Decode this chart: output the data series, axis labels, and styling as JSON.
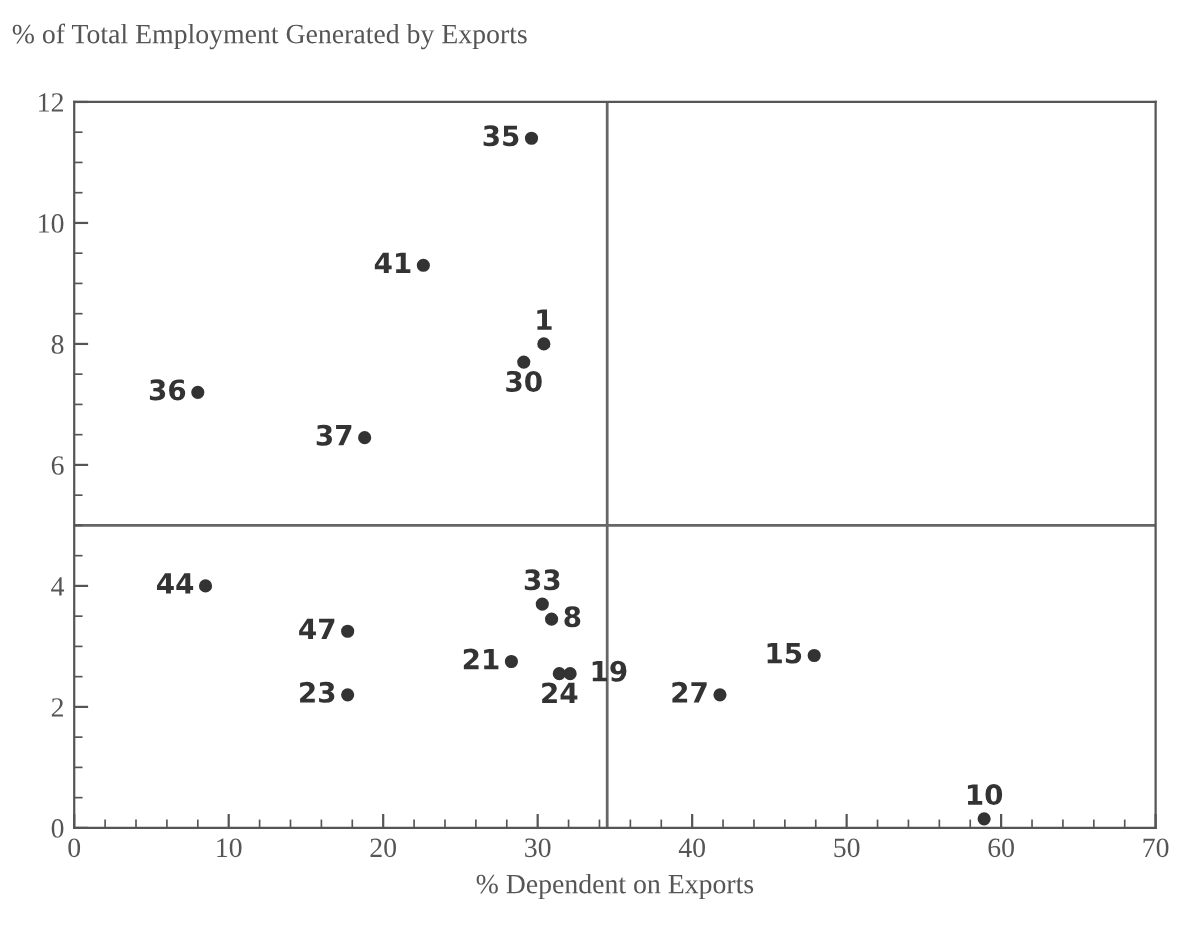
{
  "chart_data": {
    "type": "scatter",
    "ylabel": "% of Total Employment Generated by Exports",
    "xlabel": "% Dependent on Exports",
    "x": [
      29.6,
      22.6,
      30.4,
      29.1,
      8.0,
      18.8,
      8.5,
      17.7,
      17.7,
      28.3,
      30.3,
      30.9,
      32.1,
      31.4,
      47.9,
      41.8,
      58.9
    ],
    "values": [
      11.4,
      9.3,
      8.0,
      7.7,
      7.2,
      6.45,
      4.0,
      3.25,
      2.2,
      2.75,
      3.7,
      3.45,
      2.55,
      2.55,
      2.85,
      2.2,
      0.15
    ],
    "annotations": [
      {
        "text": "35",
        "x": 29.6,
        "y": 11.4
      },
      {
        "text": "41",
        "x": 22.6,
        "y": 9.3
      },
      {
        "text": "1",
        "x": 30.4,
        "y": 8.0
      },
      {
        "text": "30",
        "x": 29.1,
        "y": 7.7
      },
      {
        "text": "36",
        "x": 8.0,
        "y": 7.2
      },
      {
        "text": "37",
        "x": 18.8,
        "y": 6.45
      },
      {
        "text": "44",
        "x": 8.5,
        "y": 4.0
      },
      {
        "text": "47",
        "x": 17.7,
        "y": 3.25
      },
      {
        "text": "23",
        "x": 17.7,
        "y": 2.2
      },
      {
        "text": "21",
        "x": 28.3,
        "y": 2.75
      },
      {
        "text": "33",
        "x": 30.3,
        "y": 3.7
      },
      {
        "text": "8",
        "x": 30.9,
        "y": 3.45
      },
      {
        "text": "19",
        "x": 32.1,
        "y": 2.55
      },
      {
        "text": "24",
        "x": 31.4,
        "y": 2.55
      },
      {
        "text": "15",
        "x": 47.9,
        "y": 2.85
      },
      {
        "text": "27",
        "x": 41.8,
        "y": 2.2
      },
      {
        "text": "10",
        "x": 58.9,
        "y": 0.15
      }
    ],
    "color": "#333333",
    "marker": "circle",
    "xlim": [
      0,
      70
    ],
    "xticks": [
      0,
      10,
      20,
      30,
      40,
      50,
      60,
      70
    ],
    "ylim": [
      0,
      12
    ],
    "yticks": [
      0,
      2,
      4,
      6,
      8,
      10,
      12
    ],
    "ref_lines": [
      {
        "axis": "x",
        "value": 34.5,
        "color": "#666666"
      },
      {
        "axis": "y",
        "value": 5.0,
        "color": "#666666"
      }
    ],
    "grid": false,
    "legend": false
  }
}
